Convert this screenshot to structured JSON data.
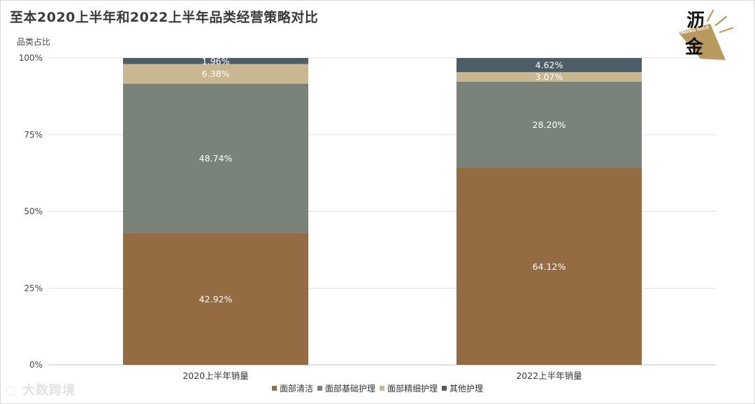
{
  "chart_data": {
    "type": "bar",
    "stacked": true,
    "normalized": true,
    "title": "至本2020上半年和2022上半年品类经营策略对比",
    "ylabel": "品类占比",
    "ylim": [
      0,
      100
    ],
    "yticks": [
      "0%",
      "25%",
      "50%",
      "75%",
      "100%"
    ],
    "ytick_values": [
      0,
      25,
      50,
      75,
      100
    ],
    "categories": [
      "2020上半年销量",
      "2022上半年销量"
    ],
    "series": [
      {
        "name": "面部清洁",
        "color": "#946b43",
        "values": [
          42.92,
          64.12
        ],
        "labels": [
          "42.92%",
          "64.12%"
        ]
      },
      {
        "name": "面部基础护理",
        "color": "#7a8379",
        "values": [
          48.74,
          28.2
        ],
        "labels": [
          "48.74%",
          "28.20%"
        ]
      },
      {
        "name": "面部精细护理",
        "color": "#c8b791",
        "values": [
          6.38,
          3.07
        ],
        "labels": [
          "6.38%",
          "3.07%"
        ]
      },
      {
        "name": "其他护理",
        "color": "#4d5d67",
        "values": [
          1.96,
          4.62
        ],
        "labels": [
          "1.96%",
          "4.62%"
        ]
      }
    ],
    "grid": true,
    "legend": "bottom"
  },
  "logo": {
    "line1": "沥",
    "line2": "金",
    "tagline": "FINDING GOLD"
  },
  "watermark": "大数跨境"
}
